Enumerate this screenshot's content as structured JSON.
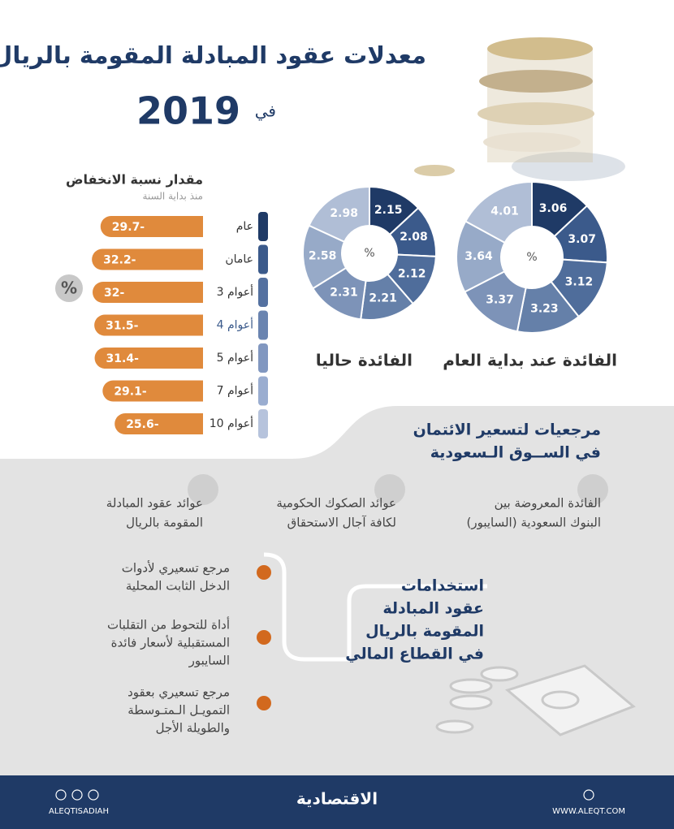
{
  "header": {
    "title": "معدلات عقود المبادلة المقومة بالريال",
    "prefix": "في",
    "year": "2019"
  },
  "chart_data": [
    {
      "type": "bar",
      "orientation": "horizontal",
      "title": "مقدار نسبة الانخفاض",
      "subtitle": "منذ بداية السنة",
      "unit": "%",
      "categories": [
        "عام",
        "عامان",
        "3 أعوام",
        "4 أعوام",
        "5 أعوام",
        "7 أعوام",
        "10 أعوام"
      ],
      "values": [
        -29.7,
        -32.2,
        -32,
        -31.5,
        -31.4,
        -29.1,
        -25.6
      ],
      "value_labels": [
        "29.7-",
        "32.2-",
        "32-",
        "31.5-",
        "31.4-",
        "29.1-",
        "25.6-"
      ],
      "color": "#e08a3c"
    },
    {
      "type": "pie",
      "title": "الفائدة عند بداية العام",
      "center_label": "%",
      "values": [
        3.06,
        3.07,
        3.12,
        3.23,
        3.37,
        3.64,
        4.01
      ],
      "colors": [
        "#1f3a66",
        "#3b5a8b",
        "#4f6d9b",
        "#6580a9",
        "#7d93b8",
        "#97aac8",
        "#b0bed6"
      ]
    },
    {
      "type": "pie",
      "title": "الفائدة حاليا",
      "center_label": "%",
      "values": [
        2.15,
        2.08,
        2.12,
        2.21,
        2.31,
        2.58,
        2.98
      ],
      "colors": [
        "#1f3a66",
        "#3b5a8b",
        "#4f6d9b",
        "#6580a9",
        "#7d93b8",
        "#97aac8",
        "#b0bed6"
      ]
    }
  ],
  "references": {
    "title": [
      "مرجعيات لتسعير الائتمان",
      "في الســوق الـسعودية"
    ],
    "items": [
      [
        "الفائدة المعروضة بين",
        "البنوك السعودية (السايبور)"
      ],
      [
        "عوائد الصكوك الحكومية",
        "لكافة آجال الاستحقاق"
      ],
      [
        "عوائد عقود المبادلة",
        "المقومة بالريال"
      ]
    ]
  },
  "uses": {
    "title": [
      "استخدامات",
      "عقود المبادلة",
      "المقومة بالريال",
      "في القطاع المالي"
    ],
    "items": [
      [
        "مرجع تسعيري لأدوات",
        "الدخل الثابت المحلية"
      ],
      [
        "أداة للتحوط من التقلبات",
        "المستقبلية لأسعار فائدة",
        "السايبور"
      ],
      [
        "مرجع تسعيري بعقود",
        "التمويـل الـمتـوسطة",
        "والطويلة الأجل"
      ]
    ]
  },
  "footer": {
    "handle": "ALEQTISADIAH",
    "brand": "الاقتصادية",
    "website": "WWW.ALEQT.COM"
  }
}
